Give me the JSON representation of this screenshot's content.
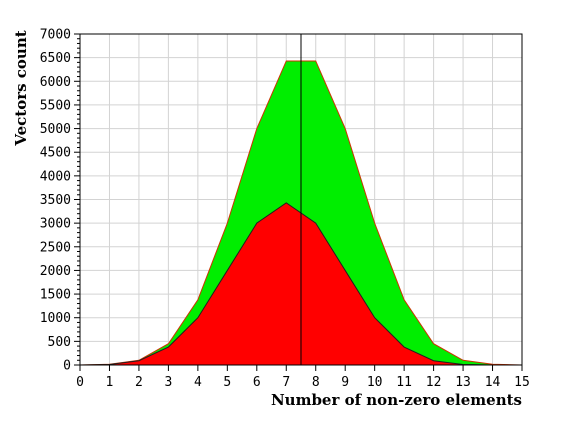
{
  "chart_data": {
    "type": "area",
    "title": "",
    "xlabel": "Number of non-zero elements",
    "ylabel": "Vectors count",
    "xlim": [
      0,
      15
    ],
    "ylim": [
      0,
      7000
    ],
    "x_ticks": [
      "0",
      "1",
      "2",
      "3",
      "4",
      "5",
      "6",
      "7",
      "8",
      "9",
      "10",
      "11",
      "12",
      "13",
      "14",
      "15"
    ],
    "y_ticks": [
      "0",
      "500",
      "1000",
      "1500",
      "2000",
      "2500",
      "3000",
      "3500",
      "4000",
      "4500",
      "5000",
      "5500",
      "6000",
      "6500",
      "7000"
    ],
    "grid": true,
    "legend": "none",
    "vline_x": 7.5,
    "series": [
      {
        "color": "#00ee00",
        "stroke": "#cc3300",
        "x": [
          0,
          1,
          2,
          3,
          4,
          5,
          6,
          7,
          8,
          9,
          10,
          11,
          12,
          13,
          14,
          15
        ],
        "values": [
          0,
          15,
          100,
          450,
          1380,
          3000,
          5000,
          6430,
          6430,
          5000,
          3000,
          1380,
          450,
          100,
          15,
          0
        ]
      },
      {
        "color": "#ff0000",
        "stroke": "#202020",
        "x": [
          0,
          1,
          2,
          3,
          4,
          5,
          6,
          7,
          8,
          9,
          10,
          11,
          12,
          13,
          14,
          15
        ],
        "values": [
          0,
          10,
          90,
          380,
          1000,
          2000,
          3000,
          3430,
          3000,
          2000,
          1000,
          380,
          90,
          10,
          0,
          0
        ]
      }
    ]
  }
}
